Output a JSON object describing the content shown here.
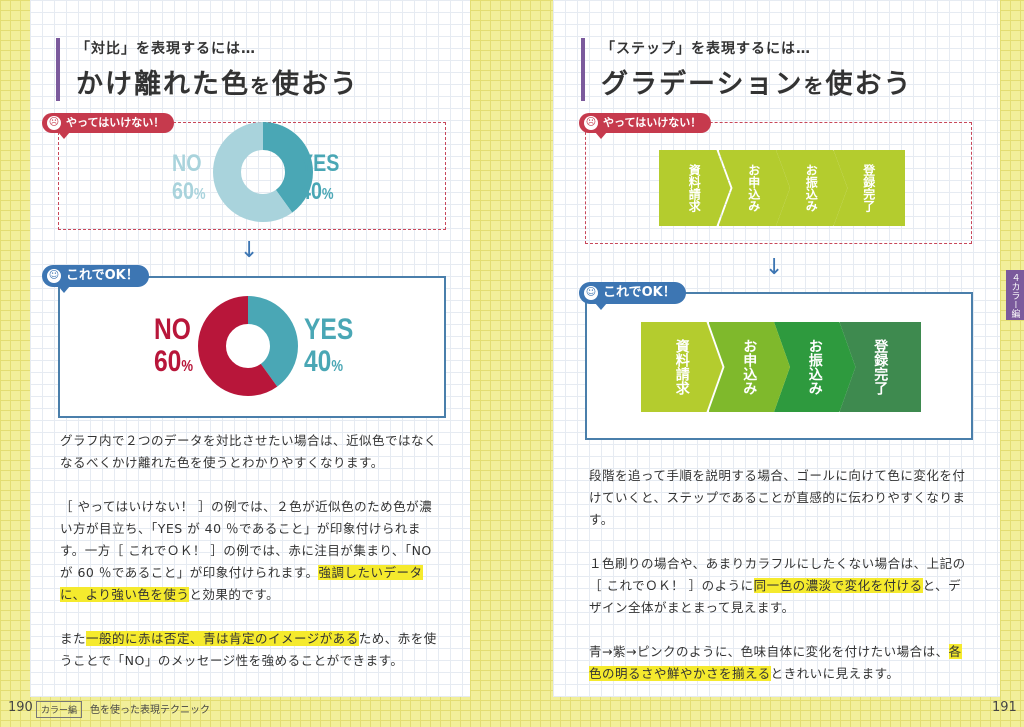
{
  "left": {
    "subtitle": "「対比」を表現するには…",
    "title_main": "かけ離れた色",
    "title_particle": "を",
    "title_end": "使おう",
    "bad_tag": "やってはいけない！",
    "good_tag": "これでOK！",
    "bad_chart": {
      "no_label": "NO",
      "no_value": "60",
      "yes_label": "YES",
      "yes_value": "40",
      "pct": "%"
    },
    "good_chart": {
      "no_label": "NO",
      "no_value": "60",
      "yes_label": "YES",
      "yes_value": "40",
      "pct": "%"
    },
    "para1": "グラフ内で２つのデータを対比させたい場合は、近似色ではなくなるべくかけ離れた色を使うとわかりやすくなります。",
    "para2_a": "［ やってはいけない！ ］の例では、２色が近似色のため色が濃い方が目立ち、「YES が 40 ％であること」が印象付けられます。一方［ これでＯＫ！ ］の例では、赤に注目が集まり、「NOが 60 ％であること」が印象付けられます。",
    "para2_hl": "強調したいデータに、より強い色を使う",
    "para2_b": "と効果的です。",
    "para3_a": "また",
    "para3_hl": "一般的に赤は否定、青は肯定のイメージがある",
    "para3_b": "ため、赤を使うことで「NO」のメッセージ性を強めることができます。",
    "page_number": "190",
    "footer_badge": "カラー編",
    "footer_section": "色を使った表現テクニック"
  },
  "right": {
    "subtitle": "「ステップ」を表現するには…",
    "title_main": "グラデーション",
    "title_particle": "を",
    "title_end": "使おう",
    "bad_tag": "やってはいけない！",
    "good_tag": "これでOK！",
    "steps": [
      "資料請求",
      "お申込み",
      "お振込み",
      "登録完了"
    ],
    "para1": "段階を追って手順を説明する場合、ゴールに向けて色に変化を付けていくと、ステップであることが直感的に伝わりやすくなります。",
    "para2_a": "１色刷りの場合や、あまりカラフルにしたくない場合は、上記の［ これでＯＫ！ ］のように",
    "para2_hl": "同一色の濃淡で変化を付ける",
    "para2_b": "と、デザイン全体がまとまって見えます。",
    "para3_a": "青→紫→ピンクのように、色味自体に変化を付けたい場合は、",
    "para3_hl": "各色の明るさや鮮やかさを揃える",
    "para3_b": "ときれいに見えます。",
    "page_number": "191",
    "side_tab": "４カラー編"
  },
  "colors": {
    "accent_purple": "#7b5a9c",
    "bad_red": "#c63a4d",
    "good_blue": "#3d76b3",
    "bad_chart_light": "#a9d3dc",
    "bad_chart_dark": "#4aa7b5",
    "good_chart_red": "#b8163a",
    "good_chart_teal": "#4aa7b5",
    "steps_bad": "#b4cc2e",
    "steps_good": [
      "#b4cc2e",
      "#7fb92c",
      "#2e9a3e",
      "#3e8a4f"
    ],
    "highlight": "#f5ea2d"
  },
  "chart_data": [
    {
      "type": "pie",
      "categories": [
        "NO",
        "YES"
      ],
      "values": [
        60,
        40
      ],
      "colors": [
        "#a9d3dc",
        "#4aa7b5"
      ]
    },
    {
      "type": "pie",
      "categories": [
        "NO",
        "YES"
      ],
      "values": [
        60,
        40
      ],
      "colors": [
        "#b8163a",
        "#4aa7b5"
      ]
    }
  ]
}
